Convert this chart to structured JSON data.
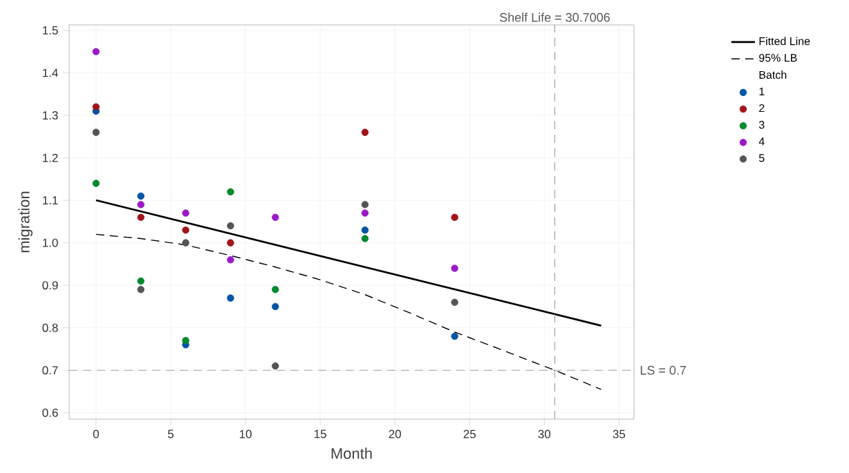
{
  "chart_data": {
    "type": "scatter",
    "xlabel": "Month",
    "ylabel": "migration",
    "legend_title": "Batch",
    "xlim": [
      -1.8,
      36
    ],
    "ylim": [
      0.585,
      1.513
    ],
    "xticks": [
      0,
      5,
      10,
      15,
      20,
      25,
      30,
      35
    ],
    "yticks": [
      0.6,
      0.7,
      0.8,
      0.9,
      {
        "value": 1,
        "label": "1.0"
      },
      1.1,
      1.2,
      1.3,
      1.4,
      1.5
    ],
    "grid": true,
    "legend": "right",
    "marker": "circle",
    "series": [
      {
        "name": "Fitted Line",
        "type": "line",
        "marker": "none",
        "line_style": "solid",
        "color": "#000000",
        "x": [
          0,
          33.8
        ],
        "values": [
          1.1,
          0.805
        ]
      },
      {
        "name": "95% LB",
        "type": "line",
        "marker": "none",
        "line_style": "dashed",
        "color": "#000000",
        "x": [
          0,
          3,
          6,
          9,
          12,
          15,
          18,
          21,
          24,
          27,
          30.7,
          33.8
        ],
        "values": [
          1.02,
          1.01,
          0.995,
          0.97,
          0.943,
          0.913,
          0.878,
          0.835,
          0.79,
          0.75,
          0.7,
          0.655
        ]
      },
      {
        "name": "1",
        "color": "#0054a6",
        "x": [
          0,
          3,
          6,
          9,
          12,
          18,
          24
        ],
        "values": [
          1.31,
          1.11,
          0.76,
          0.87,
          0.85,
          1.03,
          0.78
        ]
      },
      {
        "name": "2",
        "color": "#a0151a",
        "x": [
          0,
          3,
          6,
          9,
          18,
          24
        ],
        "values": [
          1.32,
          1.06,
          1.03,
          1.0,
          1.26,
          1.06
        ]
      },
      {
        "name": "3",
        "color": "#008a2e",
        "x": [
          0,
          3,
          6,
          9,
          12,
          18
        ],
        "values": [
          1.14,
          0.91,
          0.77,
          1.12,
          0.89,
          1.01
        ]
      },
      {
        "name": "4",
        "color": "#9b19c8",
        "x": [
          0,
          3,
          6,
          9,
          12,
          18,
          24
        ],
        "values": [
          1.45,
          1.09,
          1.07,
          0.96,
          1.06,
          1.07,
          0.94
        ]
      },
      {
        "name": "5",
        "color": "#555555",
        "x": [
          0,
          3,
          6,
          9,
          12,
          18,
          24
        ],
        "values": [
          1.26,
          0.89,
          1.0,
          1.04,
          0.71,
          1.09,
          0.86
        ]
      }
    ],
    "ref_lines": [
      {
        "axis": "x",
        "value": 30.7006,
        "label": "Shelf Life = 30.7006",
        "color": "#a0a0a0",
        "line_style": "dashed"
      },
      {
        "axis": "y",
        "value": 0.7,
        "label": "LS = 0.7",
        "color": "#a0a0a0",
        "line_style": "dashed"
      }
    ]
  }
}
